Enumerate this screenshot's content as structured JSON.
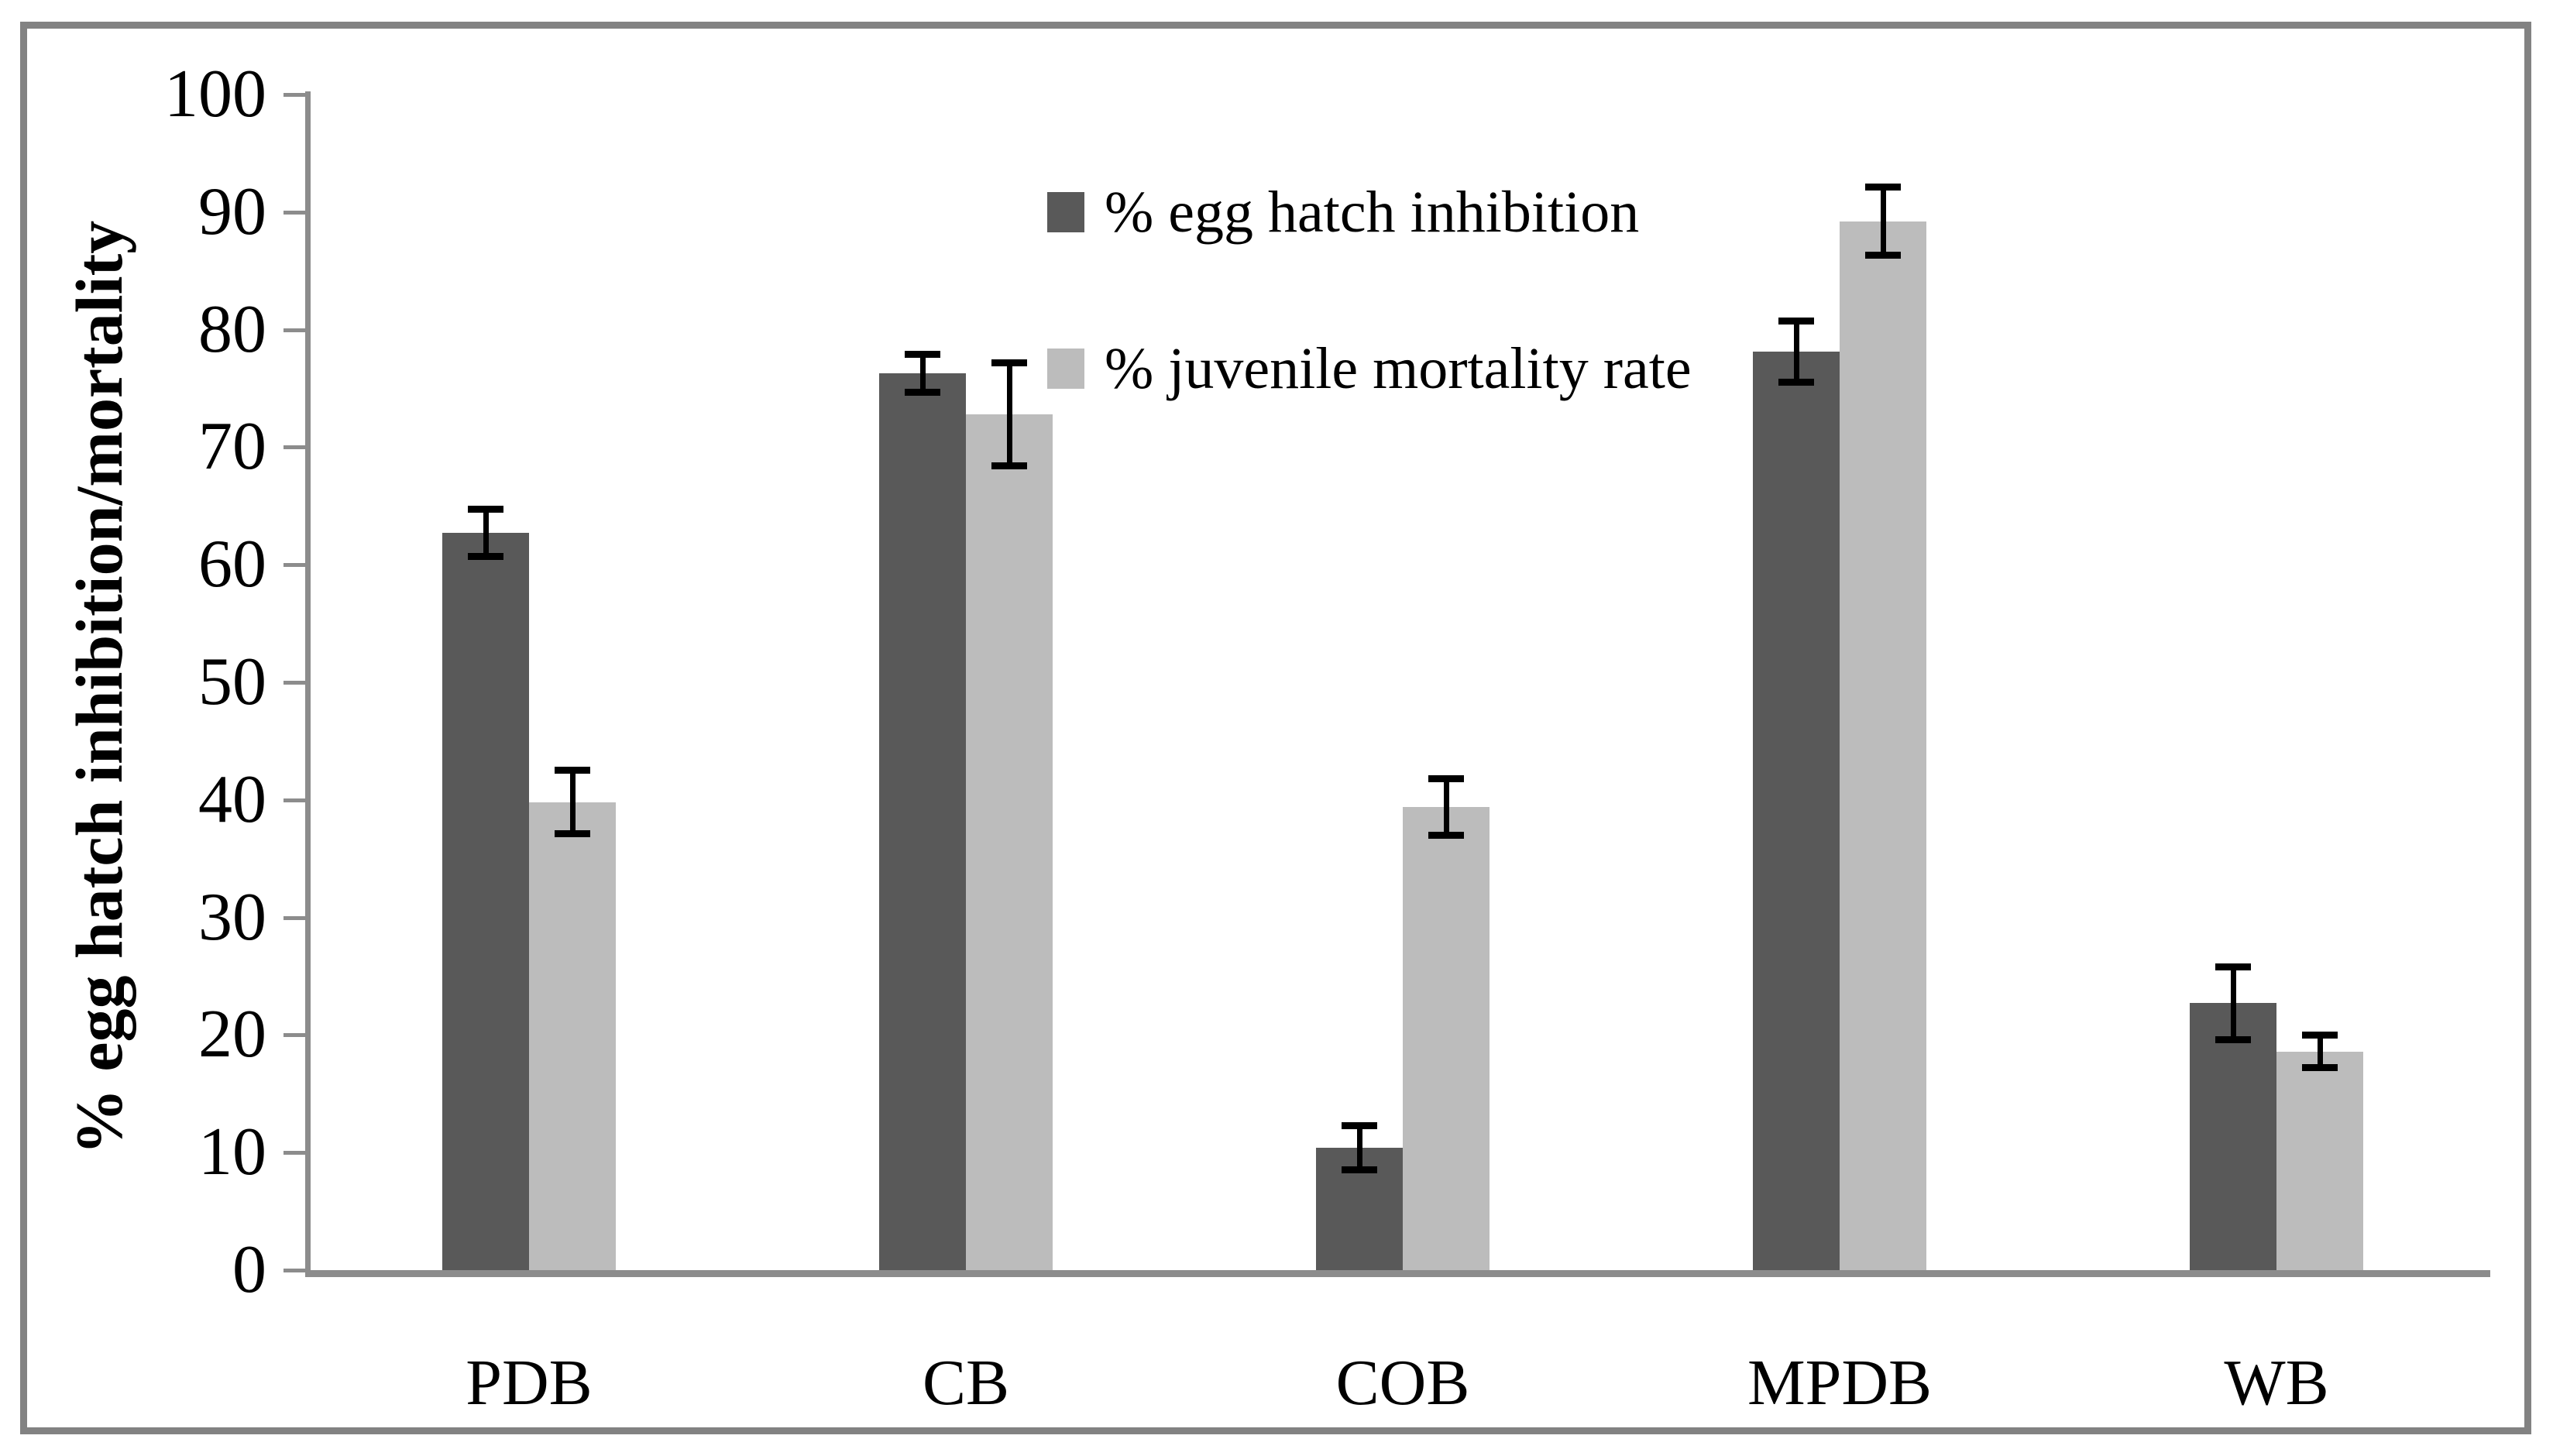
{
  "figure": {
    "background": "#ffffff",
    "border_color": "#828282",
    "axis_color": "#8c8c8c",
    "error_bar_color": "#000000"
  },
  "chart_data": {
    "type": "bar",
    "title": "",
    "xlabel": "",
    "ylabel": "% egg hatch inhibition/mortality",
    "categories": [
      "PDB",
      "CB",
      "COB",
      "MPDB",
      "WB"
    ],
    "series": [
      {
        "name": "% egg hatch inhibition",
        "color": "#595959",
        "values": [
          62.7,
          76.3,
          10.4,
          78.1,
          22.7
        ],
        "errors": [
          2.0,
          1.6,
          1.9,
          2.6,
          3.1
        ]
      },
      {
        "name": "% juvenile mortality rate",
        "color": "#bcbcbc",
        "values": [
          39.8,
          72.8,
          39.4,
          89.2,
          18.6
        ],
        "errors": [
          2.7,
          4.4,
          2.4,
          2.9,
          1.4
        ]
      }
    ],
    "ylim": [
      0,
      100
    ],
    "ytick_step": 10,
    "yticks": [
      "100",
      "90",
      "80",
      "70",
      "60",
      "50",
      "40",
      "30",
      "20",
      "10",
      "0"
    ],
    "grid": false,
    "legend_position": "upper-middle",
    "error_bars": "symmetric, black caps"
  }
}
